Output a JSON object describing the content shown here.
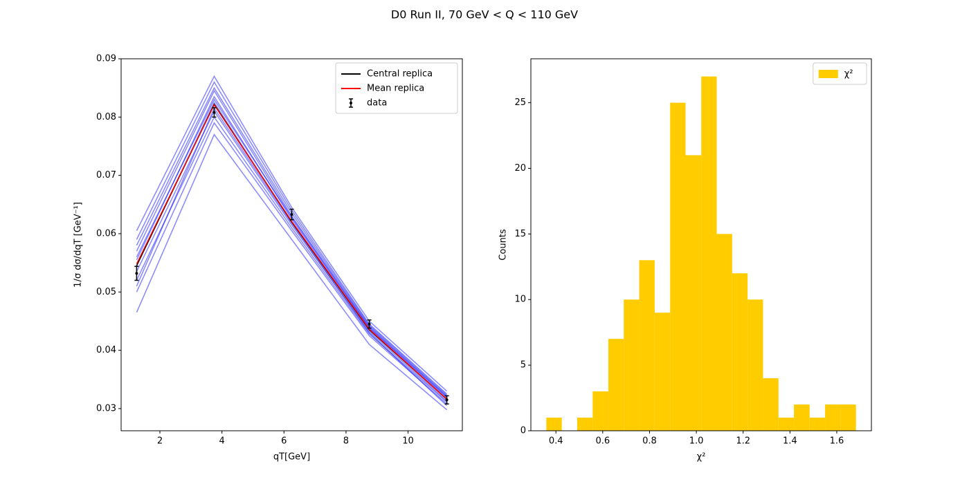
{
  "title": "D0 Run II, 70 GeV < Q < 110 GeV",
  "chart_data": [
    {
      "type": "line",
      "xlabel": "qT[GeV]",
      "ylabel": "1/σ dσ/dqT [GeV⁻¹]",
      "x": [
        1.25,
        3.75,
        6.25,
        8.75,
        11.25
      ],
      "xlim": [
        0.75,
        11.75
      ],
      "xticks": [
        2,
        4,
        6,
        8,
        10
      ],
      "ylim": [
        0.0262,
        0.09
      ],
      "yticks": [
        0.03,
        0.04,
        0.05,
        0.06,
        0.07,
        0.08,
        0.09
      ],
      "legend": "upper right",
      "replicas": {
        "color": "#0000ff",
        "values": [
          [
            0.0555,
            0.0835,
            0.0625,
            0.0438,
            0.0318
          ],
          [
            0.0535,
            0.081,
            0.0615,
            0.0432,
            0.0313
          ],
          [
            0.059,
            0.086,
            0.064,
            0.0445,
            0.0325
          ],
          [
            0.05,
            0.079,
            0.0605,
            0.0425,
            0.0308
          ],
          [
            0.0605,
            0.087,
            0.0645,
            0.045,
            0.033
          ],
          [
            0.0465,
            0.077,
            0.059,
            0.041,
            0.0298
          ],
          [
            0.057,
            0.0845,
            0.063,
            0.0441,
            0.0321
          ],
          [
            0.052,
            0.08,
            0.061,
            0.0428,
            0.0311
          ],
          [
            0.058,
            0.085,
            0.0635,
            0.0443,
            0.0323
          ],
          [
            0.0545,
            0.0825,
            0.062,
            0.0436,
            0.0316
          ],
          [
            0.051,
            0.0815,
            0.0618,
            0.043,
            0.0305
          ],
          [
            0.056,
            0.083,
            0.0628,
            0.0439,
            0.032
          ]
        ]
      },
      "series": [
        {
          "name": "Central replica",
          "color": "#000000",
          "values": [
            0.0545,
            0.0822,
            0.062,
            0.0435,
            0.0316
          ]
        },
        {
          "name": "Mean replica",
          "color": "#ff0000",
          "values": [
            0.0548,
            0.0821,
            0.0621,
            0.0436,
            0.0316
          ]
        }
      ],
      "data": {
        "name": "data",
        "color": "#000000",
        "values": [
          0.0532,
          0.0808,
          0.0633,
          0.0445,
          0.0315
        ],
        "errors": [
          0.0012,
          0.0008,
          0.0009,
          0.0007,
          0.0007
        ]
      }
    },
    {
      "type": "histogram",
      "xlabel": "χ²",
      "ylabel": "Counts",
      "bins": [
        0.359,
        0.425,
        0.491,
        0.557,
        0.624,
        0.69,
        0.756,
        0.822,
        0.888,
        0.954,
        1.021,
        1.087,
        1.153,
        1.219,
        1.285,
        1.351,
        1.417,
        1.484,
        1.55,
        1.616,
        1.682
      ],
      "series": [
        {
          "name": "χ²",
          "color": "#ffcc00",
          "values": [
            1,
            0,
            1,
            3,
            7,
            10,
            13,
            9,
            25,
            21,
            27,
            15,
            12,
            10,
            4,
            1,
            2,
            1,
            2,
            2
          ]
        }
      ],
      "xlim": [
        0.293,
        1.748
      ],
      "xticks": [
        0.4,
        0.6,
        0.8,
        {
          "value": 1,
          "label": "1.0"
        },
        1.2,
        1.4,
        1.6
      ],
      "ylim": [
        0,
        28.35
      ],
      "yticks": [
        0,
        5,
        10,
        15,
        20,
        25
      ],
      "legend": "upper right"
    }
  ]
}
